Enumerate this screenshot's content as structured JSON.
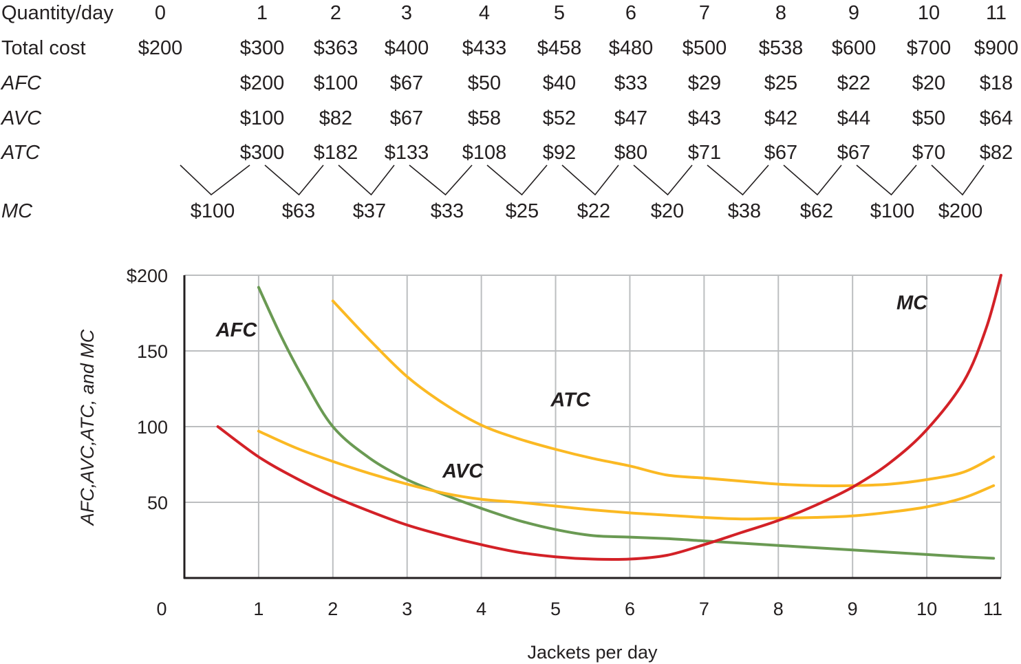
{
  "cost_table": {
    "row_labels": {
      "quantity": "Quantity/day",
      "total_cost": "Total cost",
      "afc": "AFC",
      "avc": "AVC",
      "atc": "ATC",
      "mc": "MC"
    },
    "quantity": [
      "0",
      "1",
      "2",
      "3",
      "4",
      "5",
      "6",
      "7",
      "8",
      "9",
      "10",
      "11"
    ],
    "total_cost": [
      "$200",
      "$300",
      "$363",
      "$400",
      "$433",
      "$458",
      "$480",
      "$500",
      "$538",
      "$600",
      "$700",
      "$900"
    ],
    "afc": [
      "$200",
      "$100",
      "$67",
      "$50",
      "$40",
      "$33",
      "$29",
      "$25",
      "$22",
      "$20",
      "$18"
    ],
    "avc": [
      "$100",
      "$82",
      "$67",
      "$58",
      "$52",
      "$47",
      "$43",
      "$42",
      "$44",
      "$50",
      "$64"
    ],
    "atc": [
      "$300",
      "$182",
      "$133",
      "$108",
      "$92",
      "$80",
      "$71",
      "$67",
      "$67",
      "$70",
      "$82"
    ],
    "mc": [
      "$100",
      "$63",
      "$37",
      "$33",
      "$25",
      "$22",
      "$20",
      "$38",
      "$62",
      "$100",
      "$200"
    ]
  },
  "chart_data": {
    "type": "line",
    "xlabel": "Jackets per day",
    "ylabel": "AFC,AVC,ATC, and MC",
    "xlim": [
      0,
      11
    ],
    "ylim": [
      0,
      200
    ],
    "x_ticks": [
      "0",
      "1",
      "2",
      "3",
      "4",
      "5",
      "6",
      "7",
      "8",
      "9",
      "10",
      "11"
    ],
    "y_ticks": [
      {
        "value": 50,
        "label": "50"
      },
      {
        "value": 100,
        "label": "100"
      },
      {
        "value": 150,
        "label": "150"
      },
      {
        "value": 200,
        "label": "$200"
      }
    ],
    "grid": true,
    "series": [
      {
        "name": "AFC",
        "color": "#6a9a53",
        "points": [
          [
            1,
            192
          ],
          [
            1.3,
            160
          ],
          [
            1.6,
            132
          ],
          [
            2,
            100
          ],
          [
            2.5,
            79
          ],
          [
            3,
            65
          ],
          [
            3.5,
            55
          ],
          [
            4,
            46
          ],
          [
            4.5,
            38
          ],
          [
            5,
            32
          ],
          [
            5.5,
            28
          ],
          [
            6,
            27
          ],
          [
            6.5,
            26
          ],
          [
            7,
            24.5
          ],
          [
            7.5,
            23
          ],
          [
            8,
            21.5
          ],
          [
            8.5,
            20
          ],
          [
            9,
            18.5
          ],
          [
            9.5,
            17
          ],
          [
            10,
            15.5
          ],
          [
            10.5,
            14
          ],
          [
            10.9,
            13
          ]
        ]
      },
      {
        "name": "AVC",
        "color": "#fbb923",
        "points": [
          [
            1,
            97
          ],
          [
            1.5,
            86
          ],
          [
            2,
            77
          ],
          [
            2.5,
            69
          ],
          [
            3,
            62
          ],
          [
            3.5,
            56
          ],
          [
            4,
            52
          ],
          [
            4.5,
            50
          ],
          [
            5,
            47.5
          ],
          [
            5.5,
            45
          ],
          [
            6,
            43
          ],
          [
            6.5,
            41.5
          ],
          [
            7,
            40
          ],
          [
            7.5,
            39
          ],
          [
            8,
            39.5
          ],
          [
            8.5,
            40
          ],
          [
            9,
            41
          ],
          [
            9.5,
            43.5
          ],
          [
            10,
            47
          ],
          [
            10.5,
            53
          ],
          [
            10.9,
            61
          ]
        ]
      },
      {
        "name": "ATC",
        "color": "#fbb923",
        "points": [
          [
            2,
            183
          ],
          [
            2.5,
            157
          ],
          [
            3,
            133
          ],
          [
            3.5,
            115
          ],
          [
            4,
            101
          ],
          [
            4.5,
            92
          ],
          [
            5,
            85
          ],
          [
            5.5,
            79
          ],
          [
            6,
            74
          ],
          [
            6.5,
            68
          ],
          [
            7,
            66
          ],
          [
            7.5,
            64
          ],
          [
            8,
            62
          ],
          [
            8.5,
            61
          ],
          [
            9,
            61
          ],
          [
            9.5,
            62
          ],
          [
            10,
            65
          ],
          [
            10.5,
            70
          ],
          [
            10.9,
            80
          ]
        ]
      },
      {
        "name": "MC",
        "color": "#d32127",
        "points": [
          [
            0.45,
            100
          ],
          [
            1,
            80
          ],
          [
            1.5,
            66
          ],
          [
            2,
            54
          ],
          [
            2.5,
            44
          ],
          [
            3,
            35
          ],
          [
            3.5,
            28
          ],
          [
            4,
            22
          ],
          [
            4.5,
            17
          ],
          [
            5,
            14
          ],
          [
            5.5,
            12.5
          ],
          [
            6,
            12.5
          ],
          [
            6.5,
            15
          ],
          [
            7,
            22
          ],
          [
            7.5,
            30
          ],
          [
            8,
            38
          ],
          [
            8.5,
            48
          ],
          [
            9,
            60
          ],
          [
            9.5,
            76
          ],
          [
            10,
            98
          ],
          [
            10.5,
            130
          ],
          [
            10.8,
            165
          ],
          [
            11,
            200
          ]
        ]
      }
    ],
    "annotations": [
      {
        "text": "AFC",
        "x": 0.7,
        "y": 164
      },
      {
        "text": "ATC",
        "x": 5.2,
        "y": 118
      },
      {
        "text": "AVC",
        "x": 3.75,
        "y": 71
      },
      {
        "text": "MC",
        "x": 9.8,
        "y": 182
      }
    ]
  }
}
